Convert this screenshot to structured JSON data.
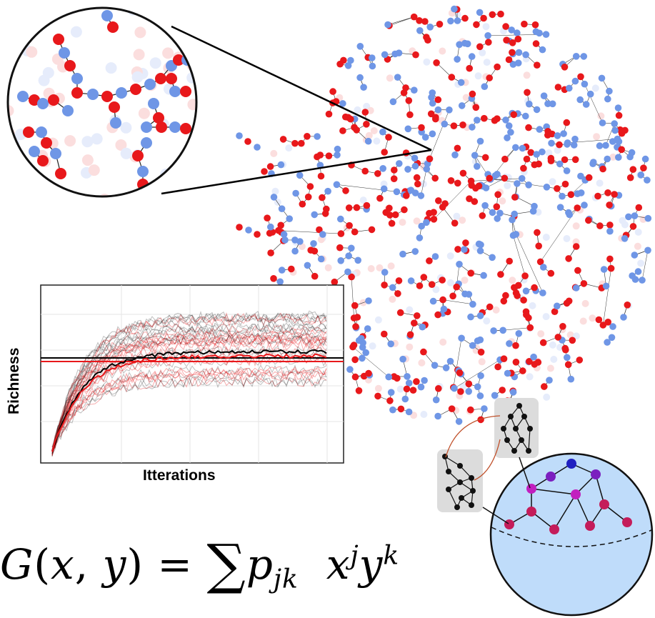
{
  "plot": {
    "xlabel": "Itterations",
    "ylabel": "Richness"
  },
  "equation": {
    "text": "G(x, y) = Σ p_jk x^j y^k"
  },
  "colors": {
    "red_node": "#e8181b",
    "blue_node": "#6f96e6",
    "faded_red": "#fbdede",
    "faded_blue": "#e6ecfb",
    "sphere_fill": "#bfdcfa",
    "graph_box": "#dcdcdc",
    "mean_black": "#000000",
    "mean_red": "#e8181b"
  },
  "network": {
    "description_nodes": "red-blue bipartite-like directed network with zoom inset"
  }
}
